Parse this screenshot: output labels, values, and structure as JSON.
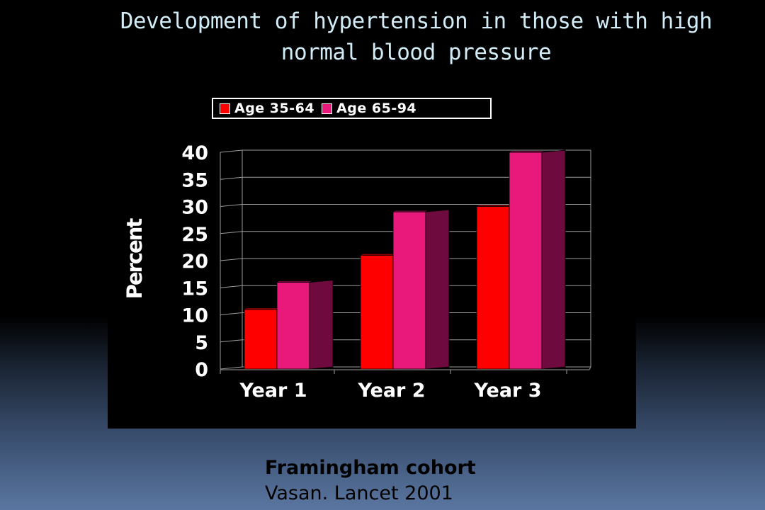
{
  "slide": {
    "title_line1": "Development of hypertension in those with high",
    "title_line2": "normal blood pressure",
    "source_title": "Framingham cohort",
    "source_citation": "Vasan. Lancet 2001"
  },
  "chart_data": {
    "type": "bar",
    "title": "",
    "xlabel": "",
    "ylabel": "Percent",
    "categories": [
      "Year 1",
      "Year 2",
      "Year 3"
    ],
    "series": [
      {
        "name": "Age 35-64",
        "values": [
          11,
          21,
          30
        ],
        "color": "#ff0000",
        "side_color": "#8b0000"
      },
      {
        "name": "Age 65-94",
        "values": [
          16,
          29,
          40
        ],
        "color": "#e8197a",
        "side_color": "#6e0a3e"
      }
    ],
    "ylim": [
      0,
      40
    ],
    "yticks": [
      "0",
      "5",
      "10",
      "15",
      "20",
      "25",
      "30",
      "35",
      "40"
    ],
    "grid": true,
    "legend_position": "top",
    "style": "3d-bar"
  }
}
